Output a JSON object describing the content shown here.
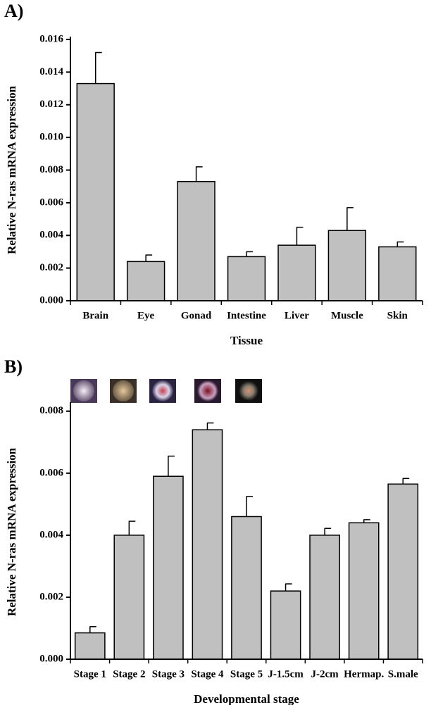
{
  "chart_data": [
    {
      "type": "bar",
      "panel_label": "A)",
      "xlabel": "Tissue",
      "ylabel": "Relative N-ras mRNA expression",
      "categories": [
        "Brain",
        "Eye",
        "Gonad",
        "Intestine",
        "Liver",
        "Muscle",
        "Skin"
      ],
      "values": [
        0.0133,
        0.0024,
        0.0073,
        0.0027,
        0.0034,
        0.0043,
        0.0033
      ],
      "errors": [
        0.0019,
        0.0004,
        0.0009,
        0.0003,
        0.0011,
        0.0014,
        0.0003
      ],
      "color": "#c0c0c0",
      "ylim": [
        0,
        0.016
      ],
      "yticks": [
        {
          "value": 0,
          "label": "0.000"
        },
        {
          "value": 0.002,
          "label": "0.002"
        },
        {
          "value": 0.004,
          "label": "0.004"
        },
        {
          "value": 0.006,
          "label": "0.006"
        },
        {
          "value": 0.008,
          "label": "0.008"
        },
        {
          "value": 0.01,
          "label": "0.010"
        },
        {
          "value": 0.012,
          "label": "0.012"
        },
        {
          "value": 0.014,
          "label": "0.014"
        },
        {
          "value": 0.016,
          "label": "0.016"
        }
      ]
    },
    {
      "type": "bar",
      "panel_label": "B)",
      "xlabel": "Developmental stage",
      "ylabel": "Relative N-ras mRNA expression",
      "categories": [
        "Stage 1",
        "Stage 2",
        "Stage 3",
        "Stage 4",
        "Stage 5",
        "J-1.5cm",
        "J-2cm",
        "Hermap.",
        "S.male"
      ],
      "values": [
        0.00085,
        0.004,
        0.0059,
        0.0074,
        0.0046,
        0.0022,
        0.004,
        0.0044,
        0.00565
      ],
      "errors": [
        0.0002,
        0.00045,
        0.00065,
        0.00022,
        0.00065,
        0.00023,
        0.00022,
        0.0001,
        0.00018
      ],
      "color": "#c0c0c0",
      "ylim": [
        0,
        0.0082
      ],
      "yticks": [
        {
          "value": 0,
          "label": "0.000"
        },
        {
          "value": 0.002,
          "label": "0.002"
        },
        {
          "value": 0.004,
          "label": "0.004"
        },
        {
          "value": 0.006,
          "label": "0.006"
        },
        {
          "value": 0.008,
          "label": "0.008"
        }
      ]
    }
  ]
}
